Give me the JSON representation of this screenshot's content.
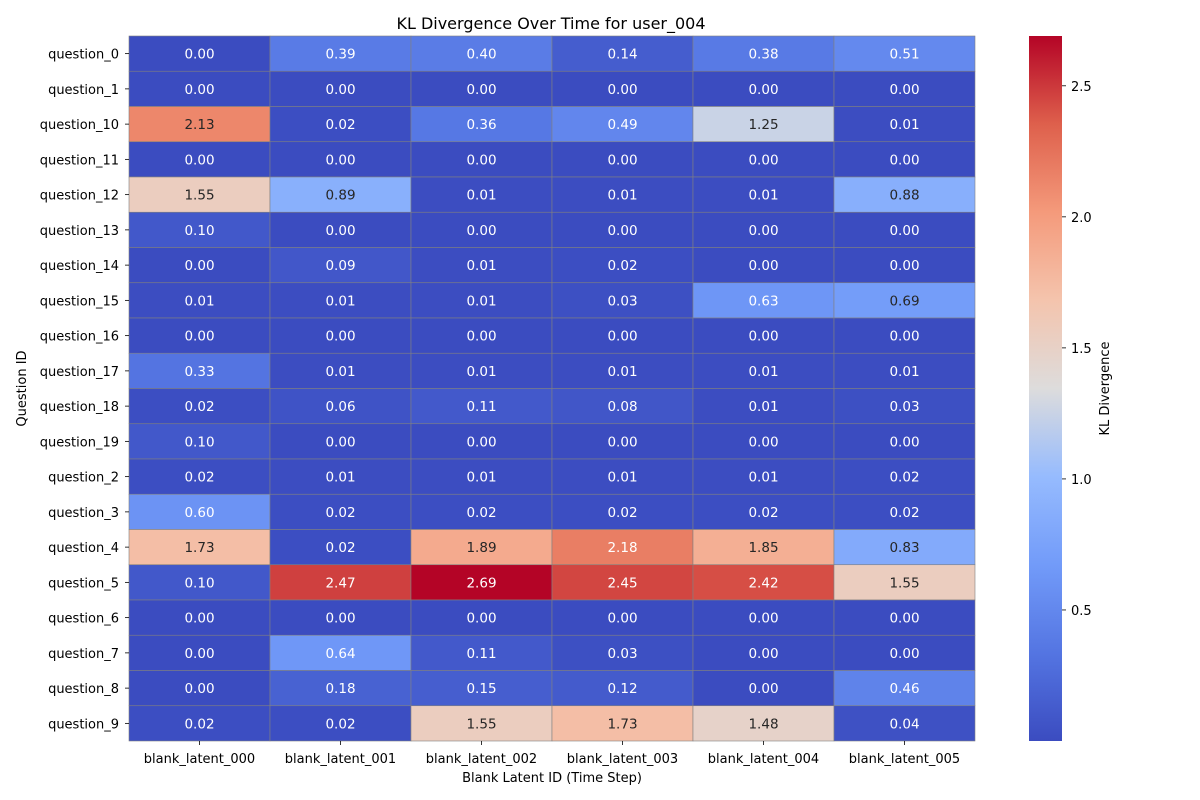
{
  "chart_data": {
    "type": "heatmap",
    "title": "KL Divergence Over Time for user_004",
    "xlabel": "Blank Latent ID (Time Step)",
    "ylabel": "Question ID",
    "colorbar_label": "KL Divergence",
    "colormap": "coolwarm",
    "vmin": 0.0,
    "vmax": 2.69,
    "colorbar_ticks": [
      0.5,
      1.0,
      1.5,
      2.0,
      2.5
    ],
    "colorbar_tick_labels": [
      "0.5",
      "1.0",
      "1.5",
      "2.0",
      "2.5"
    ],
    "x_categories": [
      "blank_latent_000",
      "blank_latent_001",
      "blank_latent_002",
      "blank_latent_003",
      "blank_latent_004",
      "blank_latent_005"
    ],
    "y_categories": [
      "question_0",
      "question_1",
      "question_10",
      "question_11",
      "question_12",
      "question_13",
      "question_14",
      "question_15",
      "question_16",
      "question_17",
      "question_18",
      "question_19",
      "question_2",
      "question_3",
      "question_4",
      "question_5",
      "question_6",
      "question_7",
      "question_8",
      "question_9"
    ],
    "values": [
      [
        0.0,
        0.39,
        0.4,
        0.14,
        0.38,
        0.51
      ],
      [
        0.0,
        0.0,
        0.0,
        0.0,
        0.0,
        0.0
      ],
      [
        2.13,
        0.02,
        0.36,
        0.49,
        1.25,
        0.01
      ],
      [
        0.0,
        0.0,
        0.0,
        0.0,
        0.0,
        0.0
      ],
      [
        1.55,
        0.89,
        0.01,
        0.01,
        0.01,
        0.88
      ],
      [
        0.1,
        0.0,
        0.0,
        0.0,
        0.0,
        0.0
      ],
      [
        0.0,
        0.09,
        0.01,
        0.02,
        0.0,
        0.0
      ],
      [
        0.01,
        0.01,
        0.01,
        0.03,
        0.63,
        0.69
      ],
      [
        0.0,
        0.0,
        0.0,
        0.0,
        0.0,
        0.0
      ],
      [
        0.33,
        0.01,
        0.01,
        0.01,
        0.01,
        0.01
      ],
      [
        0.02,
        0.06,
        0.11,
        0.08,
        0.01,
        0.03
      ],
      [
        0.1,
        0.0,
        0.0,
        0.0,
        0.0,
        0.0
      ],
      [
        0.02,
        0.01,
        0.01,
        0.01,
        0.01,
        0.02
      ],
      [
        0.6,
        0.02,
        0.02,
        0.02,
        0.02,
        0.02
      ],
      [
        1.73,
        0.02,
        1.89,
        2.18,
        1.85,
        0.83
      ],
      [
        0.1,
        2.47,
        2.69,
        2.45,
        2.42,
        1.55
      ],
      [
        0.0,
        0.0,
        0.0,
        0.0,
        0.0,
        0.0
      ],
      [
        0.0,
        0.64,
        0.11,
        0.03,
        0.0,
        0.0
      ],
      [
        0.0,
        0.18,
        0.15,
        0.12,
        0.0,
        0.46
      ],
      [
        0.02,
        0.02,
        1.55,
        1.73,
        1.48,
        0.04
      ]
    ],
    "value_format": "2 decimals",
    "cell_border_color": "#808080"
  }
}
